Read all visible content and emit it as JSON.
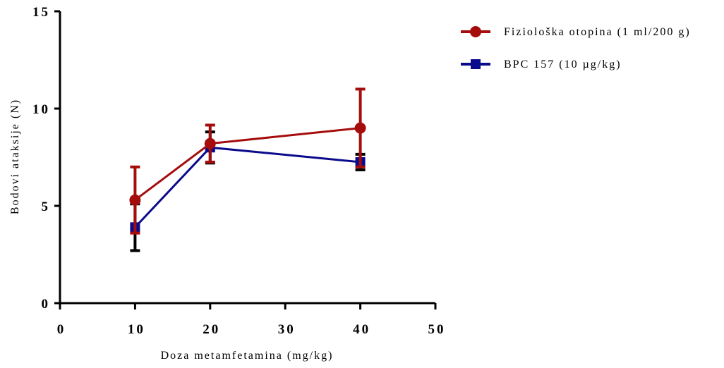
{
  "chart_data": {
    "type": "line",
    "xlabel": "Doza metamfetamina (mg/kg)",
    "ylabel": "Bodovi ataksije (N)",
    "xlim": [
      0,
      50
    ],
    "ylim": [
      0,
      15
    ],
    "x_ticks": [
      "0",
      "10",
      "20",
      "30",
      "40",
      "50"
    ],
    "y_ticks": [
      "0",
      "5",
      "10",
      "15"
    ],
    "grid": false,
    "legend_position": "top-right",
    "series": [
      {
        "name": "Fiziološka otopina (1 ml/200 g)",
        "color": "#a50d0d",
        "marker": "circle",
        "x": [
          10,
          20,
          40
        ],
        "y": [
          5.3,
          8.2,
          9.0
        ],
        "error": [
          1.7,
          0.95,
          2.0
        ]
      },
      {
        "name": "BPC 157 (10 µg/kg)",
        "color": "#0a0a8c",
        "marker": "square",
        "x": [
          10,
          20,
          40
        ],
        "y": [
          3.9,
          8.0,
          7.25
        ],
        "error": [
          1.2,
          0.8,
          0.4
        ]
      }
    ]
  }
}
